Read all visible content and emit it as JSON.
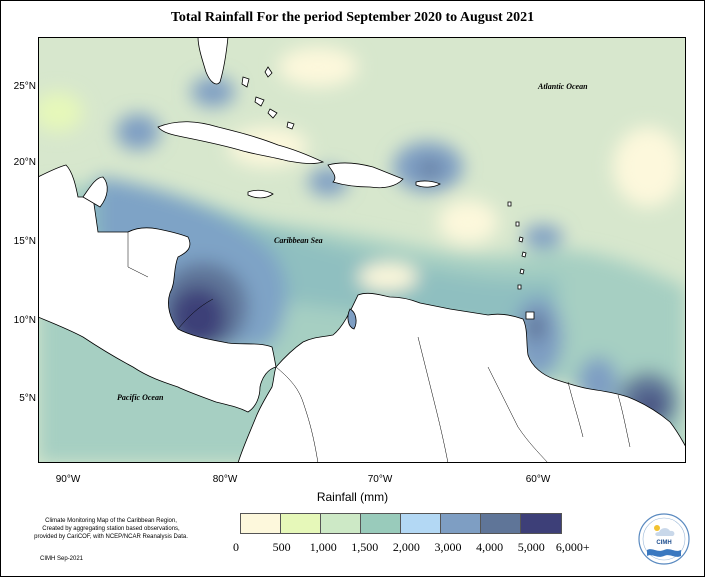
{
  "title": "Total Rainfall For the period September 2020 to August 2021",
  "lat_ticks": [
    "25°N",
    "20°N",
    "15°N",
    "10°N",
    "5°N"
  ],
  "lon_ticks": [
    "90°W",
    "80°W",
    "70°W",
    "60°W"
  ],
  "labels": {
    "atlantic": "Atlantic Ocean",
    "caribbean": "Caribbean Sea",
    "pacific": "Pacific Ocean"
  },
  "legend": {
    "title": "Rainfall (mm)",
    "colors": [
      "#fdf8dc",
      "#e6f8b9",
      "#cde9c6",
      "#99cbbb",
      "#b3d8f4",
      "#7e9ec3",
      "#5f7598",
      "#3d3f78"
    ],
    "labels": [
      "0",
      "500",
      "1,000",
      "1,500",
      "2,000",
      "3,000",
      "4,000",
      "5,000",
      "6,000+"
    ]
  },
  "credits": {
    "line1": "Climate Monitoring Map of the Caribbean Region,",
    "line2": "Created by aggregating station based observations,",
    "line3": "provided by CariCOF, with NCEP/NCAR Reanalysis Data.",
    "date": "CIMH Sep-2021"
  },
  "logo": {
    "text": "CIMH"
  }
}
